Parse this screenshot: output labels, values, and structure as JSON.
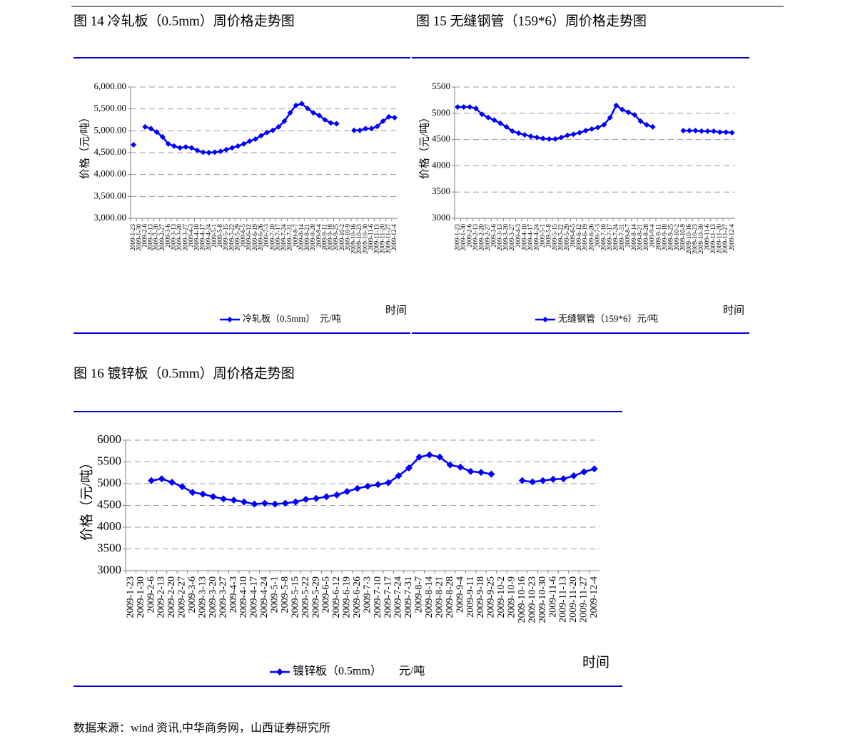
{
  "headings": [
    "图 14 冷轧板（0.5mm）周价格走势图",
    "图 15 无缝钢管（159*6）周价格走势图",
    "图 16 镀锌板（0.5mm）周价格走势图"
  ],
  "source": "数据来源：wind 资讯,中华商务网，山西证券研究所",
  "chart_data": [
    {
      "type": "line",
      "ylabel": "价格（元/吨）",
      "xlabel": "时间",
      "x": [
        "2009-1-23",
        "2009-1-30",
        "2009-2-6",
        "2009-2-13",
        "2009-2-20",
        "2009-2-27",
        "2009-3-6",
        "2009-3-13",
        "2009-3-20",
        "2009-3-27",
        "2009-4-3",
        "2009-4-10",
        "2009-4-17",
        "2009-4-24",
        "2009-5-1",
        "2009-5-8",
        "2009-5-15",
        "2009-5-22",
        "2009-5-29",
        "2009-6-5",
        "2009-6-12",
        "2009-6-19",
        "2009-6-26",
        "2009-7-3",
        "2009-7-10",
        "2009-7-17",
        "2009-7-24",
        "2009-7-31",
        "2009-8-7",
        "2009-8-14",
        "2009-8-21",
        "2009-8-28",
        "2009-9-4",
        "2009-9-11",
        "2009-9-18",
        "2009-9-25",
        "2009-10-2",
        "2009-10-9",
        "2009-10-16",
        "2009-10-23",
        "2009-10-30",
        "2009-11-6",
        "2009-11-13",
        "2009-11-20",
        "2009-11-27",
        "2009-12-4"
      ],
      "series": [
        {
          "name": "冷轧板（0.5mm）　元/吨",
          "color": "#0000ff",
          "values": [
            4680,
            null,
            5090,
            5050,
            4970,
            4860,
            4700,
            4650,
            4610,
            4630,
            4610,
            4550,
            4510,
            4500,
            4510,
            4530,
            4570,
            4610,
            4650,
            4700,
            4760,
            4810,
            4890,
            4960,
            5010,
            5090,
            5220,
            5410,
            5580,
            5620,
            5510,
            5410,
            5350,
            5250,
            5180,
            5160,
            null,
            null,
            5010,
            5010,
            5050,
            5050,
            5100,
            5220,
            5320,
            5300
          ]
        }
      ],
      "ylim": [
        3000,
        6000
      ],
      "yticks": [
        {
          "value": 3000,
          "label": "3,000.00"
        },
        {
          "value": 3500,
          "label": "3,500.00"
        },
        {
          "value": 4000,
          "label": "4,000.00"
        },
        {
          "value": 4500,
          "label": "4,500.00"
        },
        {
          "value": 5000,
          "label": "5,000.00"
        },
        {
          "value": 5500,
          "label": "5,500.00"
        },
        {
          "value": 6000,
          "label": "6,000.00"
        }
      ],
      "grid": true
    },
    {
      "type": "line",
      "ylabel": "价格（元/吨）",
      "xlabel": "时间",
      "x": [
        "2009-1-23",
        "2009-1-30",
        "2009-2-6",
        "2009-2-13",
        "2009-2-20",
        "2009-2-27",
        "2009-3-6",
        "2009-3-13",
        "2009-3-20",
        "2009-3-27",
        "2009-4-3",
        "2009-4-10",
        "2009-4-17",
        "2009-4-24",
        "2009-5-1",
        "2009-5-8",
        "2009-5-15",
        "2009-5-22",
        "2009-5-29",
        "2009-6-5",
        "2009-6-12",
        "2009-6-19",
        "2009-6-26",
        "2009-7-3",
        "2009-7-10",
        "2009-7-17",
        "2009-7-24",
        "2009-7-31",
        "2009-8-7",
        "2009-8-14",
        "2009-8-21",
        "2009-8-28",
        "2009-9-4",
        "2009-9-11",
        "2009-9-18",
        "2009-9-25",
        "2009-10-2",
        "2009-10-9",
        "2009-10-16",
        "2009-10-23",
        "2009-10-30",
        "2009-11-6",
        "2009-11-13",
        "2009-11-20",
        "2009-11-27",
        "2009-12-4"
      ],
      "series": [
        {
          "name": "无缝钢管（159*6）元/吨",
          "color": "#0000ff",
          "values": [
            5120,
            5120,
            5120,
            5090,
            4980,
            4920,
            4870,
            4810,
            4740,
            4660,
            4620,
            4590,
            4560,
            4540,
            4520,
            4510,
            4510,
            4540,
            4580,
            4600,
            4630,
            4670,
            4700,
            4730,
            4780,
            4920,
            5150,
            5070,
            5020,
            4970,
            4850,
            4780,
            4740,
            null,
            null,
            null,
            null,
            4670,
            4670,
            4670,
            4660,
            4660,
            4660,
            4640,
            4640,
            4630
          ]
        }
      ],
      "ylim": [
        3000,
        5500
      ],
      "yticks": [
        3000,
        3500,
        4000,
        4500,
        5000,
        5500
      ],
      "grid": true
    },
    {
      "type": "line",
      "ylabel": "价格（元/吨）",
      "xlabel": "时间",
      "x": [
        "2009-1-23",
        "2009-1-30",
        "2009-2-6",
        "2009-2-13",
        "2009-2-20",
        "2009-2-27",
        "2009-3-6",
        "2009-3-13",
        "2009-3-20",
        "2009-3-27",
        "2009-4-3",
        "2009-4-10",
        "2009-4-17",
        "2009-4-24",
        "2009-5-1",
        "2009-5-8",
        "2009-5-15",
        "2009-5-22",
        "2009-5-29",
        "2009-6-5",
        "2009-6-12",
        "2009-6-19",
        "2009-6-26",
        "2009-7-3",
        "2009-7-10",
        "2009-7-17",
        "2009-7-24",
        "2009-7-31",
        "2009-8-7",
        "2009-8-14",
        "2009-8-21",
        "2009-8-28",
        "2009-9-4",
        "2009-9-11",
        "2009-9-18",
        "2009-9-25",
        "2009-10-2",
        "2009-10-9",
        "2009-10-16",
        "2009-10-23",
        "2009-10-30",
        "2009-11-6",
        "2009-11-13",
        "2009-11-20",
        "2009-11-27",
        "2009-12-4"
      ],
      "series": [
        {
          "name": "镀锌板（0.5mm）　　元/吨",
          "color": "#0000ff",
          "values": [
            null,
            null,
            5070,
            5110,
            5030,
            4930,
            4800,
            4760,
            4700,
            4650,
            4620,
            4580,
            4530,
            4550,
            4530,
            4550,
            4580,
            4640,
            4660,
            4700,
            4740,
            4820,
            4890,
            4940,
            4980,
            5020,
            5180,
            5360,
            5610,
            5660,
            5610,
            5430,
            5380,
            5280,
            5260,
            5220,
            null,
            null,
            5070,
            5040,
            5070,
            5100,
            5110,
            5180,
            5270,
            5340
          ]
        }
      ],
      "ylim": [
        3000,
        6000
      ],
      "yticks": [
        3000,
        3500,
        4000,
        4500,
        5000,
        5500,
        6000
      ],
      "grid": true
    }
  ]
}
